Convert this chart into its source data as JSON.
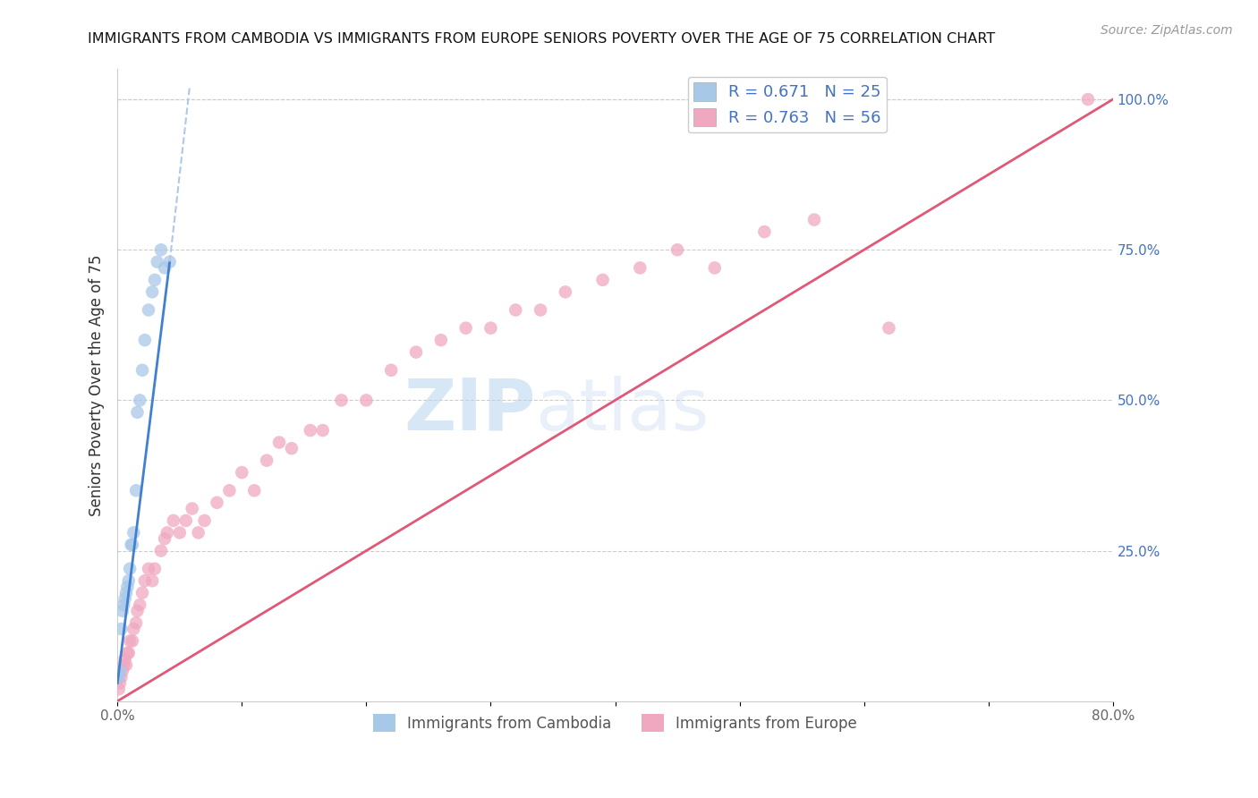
{
  "title": "IMMIGRANTS FROM CAMBODIA VS IMMIGRANTS FROM EUROPE SENIORS POVERTY OVER THE AGE OF 75 CORRELATION CHART",
  "source": "Source: ZipAtlas.com",
  "ylabel_left": "Seniors Poverty Over the Age of 75",
  "legend_labels_bottom": [
    "Immigrants from Cambodia",
    "Immigrants from Europe"
  ],
  "blue_color": "#a8c8e8",
  "pink_color": "#f0a8c0",
  "blue_line_color": "#4080d0",
  "blue_line_dashed_color": "#b0c8e8",
  "pink_line_color": "#e05878",
  "watermark_zip": "ZIP",
  "watermark_atlas": "atlas",
  "xmin": 0.0,
  "xmax": 0.8,
  "ymin": 0.0,
  "ymax": 1.05,
  "right_yticks": [
    1.0,
    0.75,
    0.5,
    0.25
  ],
  "right_yticklabels": [
    "100.0%",
    "75.0%",
    "50.0%",
    "25.0%"
  ],
  "bottom_xticks": [
    0.0,
    0.1,
    0.2,
    0.3,
    0.4,
    0.5,
    0.6,
    0.7,
    0.8
  ],
  "bottom_xticklabels": [
    "0.0%",
    "",
    "",
    "",
    "",
    "",
    "",
    "",
    "80.0%"
  ],
  "cambodia_x": [
    0.001,
    0.002,
    0.003,
    0.004,
    0.005,
    0.006,
    0.007,
    0.008,
    0.009,
    0.01,
    0.011,
    0.012,
    0.013,
    0.015,
    0.016,
    0.018,
    0.02,
    0.022,
    0.025,
    0.028,
    0.03,
    0.032,
    0.035,
    0.038,
    0.042
  ],
  "cambodia_y": [
    0.04,
    0.05,
    0.12,
    0.15,
    0.16,
    0.17,
    0.18,
    0.19,
    0.2,
    0.22,
    0.26,
    0.26,
    0.28,
    0.35,
    0.48,
    0.5,
    0.55,
    0.6,
    0.65,
    0.68,
    0.7,
    0.73,
    0.75,
    0.72,
    0.73
  ],
  "europe_x": [
    0.001,
    0.002,
    0.003,
    0.004,
    0.005,
    0.006,
    0.007,
    0.008,
    0.009,
    0.01,
    0.012,
    0.013,
    0.015,
    0.016,
    0.018,
    0.02,
    0.022,
    0.025,
    0.028,
    0.03,
    0.035,
    0.038,
    0.04,
    0.045,
    0.05,
    0.055,
    0.06,
    0.065,
    0.07,
    0.08,
    0.09,
    0.1,
    0.11,
    0.12,
    0.13,
    0.14,
    0.155,
    0.165,
    0.18,
    0.2,
    0.22,
    0.24,
    0.26,
    0.28,
    0.3,
    0.32,
    0.34,
    0.36,
    0.39,
    0.42,
    0.45,
    0.48,
    0.52,
    0.56,
    0.62,
    0.78
  ],
  "europe_y": [
    0.02,
    0.03,
    0.04,
    0.05,
    0.06,
    0.07,
    0.06,
    0.08,
    0.08,
    0.1,
    0.1,
    0.12,
    0.13,
    0.15,
    0.16,
    0.18,
    0.2,
    0.22,
    0.2,
    0.22,
    0.25,
    0.27,
    0.28,
    0.3,
    0.28,
    0.3,
    0.32,
    0.28,
    0.3,
    0.33,
    0.35,
    0.38,
    0.35,
    0.4,
    0.43,
    0.42,
    0.45,
    0.45,
    0.5,
    0.5,
    0.55,
    0.58,
    0.6,
    0.62,
    0.62,
    0.65,
    0.65,
    0.68,
    0.7,
    0.72,
    0.75,
    0.72,
    0.78,
    0.8,
    0.62,
    1.0
  ],
  "pink_line_x0": 0.0,
  "pink_line_y0": 0.0,
  "pink_line_x1": 0.8,
  "pink_line_y1": 1.0,
  "blue_line_x0": 0.0,
  "blue_line_y0": 0.03,
  "blue_line_x1": 0.042,
  "blue_line_y1": 0.73,
  "blue_line_dashed_x0": 0.042,
  "blue_line_dashed_y0": 0.73,
  "blue_line_dashed_x1": 0.058,
  "blue_line_dashed_y1": 1.02
}
